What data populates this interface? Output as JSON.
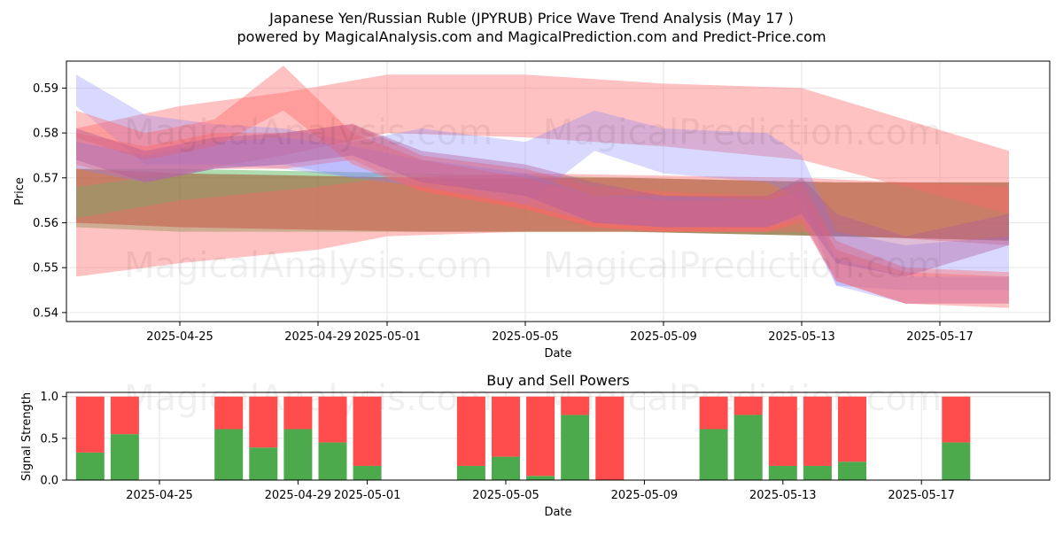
{
  "header": {
    "title": "Japanese Yen/Russian Ruble (JPYRUB) Price Wave Trend Analysis (May 17 )",
    "subtitle": "powered by MagicalAnalysis.com and MagicalPrediction.com and Predict-Price.com"
  },
  "watermarks": {
    "left": "MagicalAnalysis.com",
    "right": "MagicalPrediction.com"
  },
  "colors": {
    "red_band": "#ff6666",
    "blue_band": "#8080ff",
    "green_band": "#4caf50",
    "brown_band": "#a0522d",
    "buy": "#4caa4c",
    "sell": "#ff4d4d"
  },
  "chart_data": [
    {
      "type": "area",
      "xlabel": "Date",
      "ylabel": "Price",
      "ylim": [
        0.538,
        0.596
      ],
      "yticks": [
        0.54,
        0.55,
        0.56,
        0.57,
        0.58,
        0.59
      ],
      "ytick_labels": [
        "0.54",
        "0.55",
        "0.56",
        "0.57",
        "0.58",
        "0.59"
      ],
      "xticks": [
        "2025-04-25",
        "2025-04-29",
        "2025-05-01",
        "2025-05-05",
        "2025-05-09",
        "2025-05-13",
        "2025-05-17"
      ],
      "grid": true,
      "series": [
        {
          "color": "green",
          "x": [
            "2025-04-22",
            "2025-04-25",
            "2025-05-02",
            "2025-05-08",
            "2025-05-14",
            "2025-05-19"
          ],
          "upper": [
            0.572,
            0.572,
            0.571,
            0.57,
            0.569,
            0.569
          ],
          "lower": [
            0.559,
            0.558,
            0.558,
            0.558,
            0.557,
            0.556
          ]
        },
        {
          "color": "brown",
          "x": [
            "2025-04-22",
            "2025-04-25",
            "2025-05-02",
            "2025-05-08",
            "2025-05-14",
            "2025-05-19"
          ],
          "upper": [
            0.572,
            0.571,
            0.57,
            0.57,
            0.569,
            0.569
          ],
          "lower": [
            0.56,
            0.559,
            0.558,
            0.558,
            0.557,
            0.556
          ]
        },
        {
          "color": "red",
          "x": [
            "2025-04-22",
            "2025-04-25",
            "2025-04-28",
            "2025-05-01",
            "2025-05-05",
            "2025-05-09",
            "2025-05-13",
            "2025-05-19"
          ],
          "upper": [
            0.581,
            0.586,
            0.589,
            0.593,
            0.593,
            0.591,
            0.59,
            0.576
          ],
          "lower": [
            0.568,
            0.571,
            0.575,
            0.58,
            0.579,
            0.577,
            0.574,
            0.562
          ]
        },
        {
          "color": "red",
          "x": [
            "2025-04-22",
            "2025-04-25",
            "2025-04-29",
            "2025-05-01",
            "2025-05-05",
            "2025-05-13",
            "2025-05-19"
          ],
          "upper": [
            0.561,
            0.565,
            0.568,
            0.57,
            0.571,
            0.57,
            0.568
          ],
          "lower": [
            0.548,
            0.551,
            0.554,
            0.557,
            0.558,
            0.558,
            0.555
          ]
        },
        {
          "color": "blue",
          "x": [
            "2025-04-22",
            "2025-04-24",
            "2025-04-26",
            "2025-04-28",
            "2025-04-30",
            "2025-05-02",
            "2025-05-05",
            "2025-05-07",
            "2025-05-09",
            "2025-05-12",
            "2025-05-13",
            "2025-05-14",
            "2025-05-16",
            "2025-05-19"
          ],
          "upper": [
            0.593,
            0.584,
            0.582,
            0.581,
            0.578,
            0.581,
            0.578,
            0.585,
            0.581,
            0.58,
            0.575,
            0.558,
            0.555,
            0.557
          ],
          "lower": [
            0.586,
            0.573,
            0.573,
            0.572,
            0.57,
            0.571,
            0.564,
            0.576,
            0.571,
            0.569,
            0.565,
            0.546,
            0.545,
            0.545
          ]
        },
        {
          "color": "red",
          "x": [
            "2025-04-22",
            "2025-04-24",
            "2025-04-26",
            "2025-04-28",
            "2025-04-30",
            "2025-05-02",
            "2025-05-05",
            "2025-05-07",
            "2025-05-09",
            "2025-05-12",
            "2025-05-13",
            "2025-05-14",
            "2025-05-16",
            "2025-05-19"
          ],
          "upper": [
            0.58,
            0.577,
            0.58,
            0.58,
            0.582,
            0.575,
            0.572,
            0.568,
            0.567,
            0.566,
            0.569,
            0.556,
            0.55,
            0.549
          ],
          "lower": [
            0.573,
            0.569,
            0.572,
            0.572,
            0.574,
            0.567,
            0.563,
            0.559,
            0.558,
            0.558,
            0.561,
            0.547,
            0.542,
            0.541
          ]
        },
        {
          "color": "blue",
          "x": [
            "2025-04-22",
            "2025-04-24",
            "2025-04-26",
            "2025-04-28",
            "2025-04-30",
            "2025-05-02",
            "2025-05-05",
            "2025-05-07",
            "2025-05-09",
            "2025-05-12",
            "2025-05-13",
            "2025-05-14",
            "2025-05-16",
            "2025-05-19"
          ],
          "upper": [
            0.578,
            0.575,
            0.578,
            0.579,
            0.577,
            0.574,
            0.571,
            0.566,
            0.566,
            0.565,
            0.567,
            0.552,
            0.548,
            0.548
          ],
          "lower": [
            0.572,
            0.569,
            0.572,
            0.573,
            0.57,
            0.568,
            0.564,
            0.56,
            0.559,
            0.559,
            0.561,
            0.546,
            0.542,
            0.542
          ]
        },
        {
          "color": "red",
          "x": [
            "2025-04-22",
            "2025-04-24",
            "2025-04-26",
            "2025-04-28",
            "2025-04-30",
            "2025-05-02",
            "2025-05-05",
            "2025-05-07",
            "2025-05-09",
            "2025-05-12",
            "2025-05-13",
            "2025-05-14",
            "2025-05-16",
            "2025-05-19"
          ],
          "upper": [
            0.585,
            0.58,
            0.583,
            0.595,
            0.58,
            0.574,
            0.57,
            0.566,
            0.565,
            0.565,
            0.567,
            0.554,
            0.549,
            0.548
          ],
          "lower": [
            0.579,
            0.574,
            0.577,
            0.585,
            0.573,
            0.567,
            0.563,
            0.559,
            0.558,
            0.558,
            0.56,
            0.547,
            0.542,
            0.542
          ]
        },
        {
          "color": "purple",
          "x": [
            "2025-04-22",
            "2025-04-24",
            "2025-04-26",
            "2025-04-28",
            "2025-04-30",
            "2025-05-02",
            "2025-05-05",
            "2025-05-07",
            "2025-05-09",
            "2025-05-12",
            "2025-05-13",
            "2025-05-14",
            "2025-05-16",
            "2025-05-19"
          ],
          "upper": [
            0.581,
            0.576,
            0.579,
            0.58,
            0.582,
            0.576,
            0.573,
            0.569,
            0.566,
            0.566,
            0.57,
            0.562,
            0.557,
            0.562
          ],
          "lower": [
            0.574,
            0.569,
            0.572,
            0.573,
            0.575,
            0.569,
            0.566,
            0.56,
            0.559,
            0.559,
            0.562,
            0.551,
            0.548,
            0.555
          ]
        }
      ]
    },
    {
      "type": "bar",
      "title": "Buy and Sell Powers",
      "xlabel": "Date",
      "ylabel": "Signal Strength",
      "ylim": [
        0,
        1.05
      ],
      "yticks": [
        0.0,
        0.5,
        1.0
      ],
      "ytick_labels": [
        "0.0",
        "0.5",
        "1.0"
      ],
      "xticks": [
        "2025-04-25",
        "2025-04-29",
        "2025-05-01",
        "2025-05-05",
        "2025-05-09",
        "2025-05-13",
        "2025-05-17"
      ],
      "grid": true,
      "categories": [
        "2025-04-23",
        "2025-04-24",
        "2025-04-27",
        "2025-04-28",
        "2025-04-29",
        "2025-04-30",
        "2025-05-01",
        "2025-05-04",
        "2025-05-05",
        "2025-05-06",
        "2025-05-07",
        "2025-05-08",
        "2025-05-11",
        "2025-05-12",
        "2025-05-13",
        "2025-05-14",
        "2025-05-15",
        "2025-05-18"
      ],
      "series": [
        {
          "name": "Buy",
          "values": [
            0.33,
            0.55,
            0.61,
            0.39,
            0.61,
            0.45,
            0.17,
            0.17,
            0.28,
            0.05,
            0.78,
            0.0,
            0.61,
            0.78,
            0.17,
            0.17,
            0.22,
            0.45
          ]
        },
        {
          "name": "Sell",
          "values": [
            0.67,
            0.45,
            0.39,
            0.61,
            0.39,
            0.55,
            0.83,
            0.83,
            0.72,
            0.95,
            0.22,
            1.0,
            0.39,
            0.22,
            0.83,
            0.83,
            0.78,
            0.55
          ]
        }
      ]
    }
  ]
}
